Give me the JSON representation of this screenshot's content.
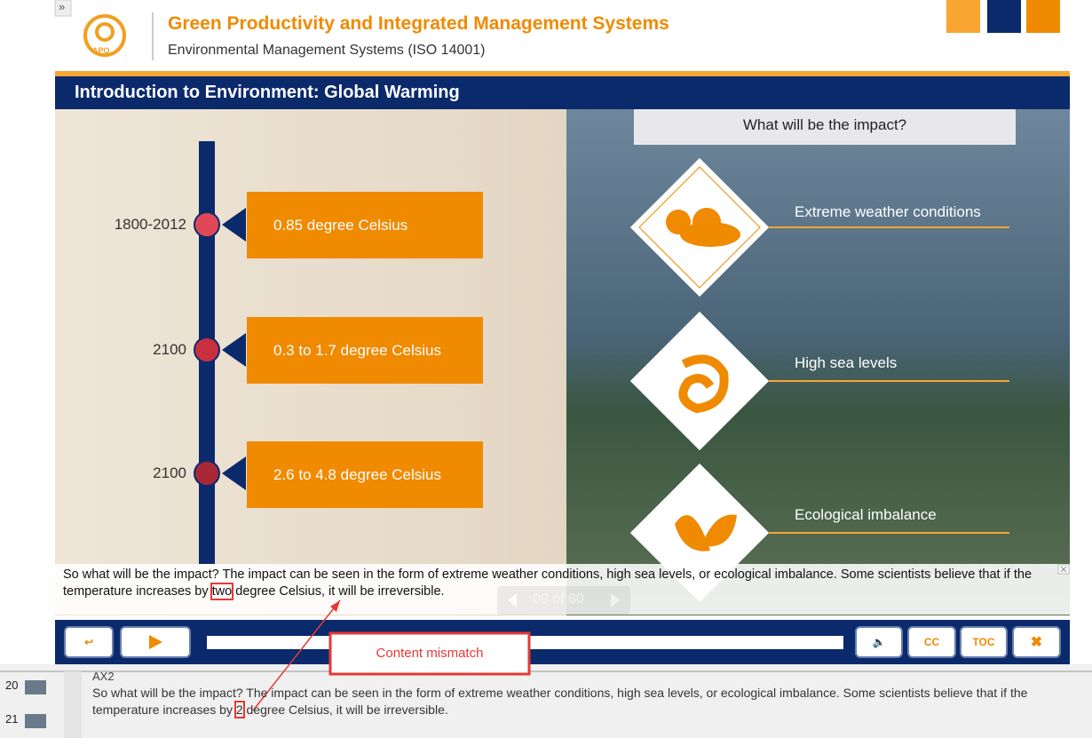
{
  "expand": "»",
  "header": {
    "logo": "APO",
    "title": "Green Productivity and Integrated Management Systems",
    "subtitle": "Environmental Management Systems (ISO 14001)"
  },
  "slide": {
    "title": "Introduction to Environment: Global Warming",
    "timeline": [
      {
        "period": "1800-2012",
        "text": "0.85 degree Celsius"
      },
      {
        "period": "2100",
        "text": "0.3 to 1.7 degree Celsius"
      },
      {
        "period": "2100",
        "text": "2.6 to 4.8 degree Celsius"
      }
    ],
    "impact_heading": "What will be the impact?",
    "impacts": [
      "Extreme weather conditions",
      "High sea levels",
      "Ecological imbalance"
    ],
    "caption": {
      "before": "So what will be the impact? The impact can be seen in the form of extreme weather conditions, high sea levels, or ecological imbalance. Some scientists believe that if the temperature increases by",
      "highlight": "two",
      "after": "degree Celsius, it will be irreversible."
    },
    "page_counter": "09 of 60"
  },
  "controls": {
    "cc": "CC",
    "toc": "TOC"
  },
  "annotation": "Content mismatch",
  "notes": {
    "rows": [
      "20",
      "21"
    ],
    "label": "AX2",
    "before": "So what will be the impact? The impact can be seen in the form of extreme weather conditions, high sea levels, or ecological imbalance. Some scientists believe that if the temperature increases by",
    "highlight": "2",
    "after": "degree Celsius, it will be irreversible."
  }
}
